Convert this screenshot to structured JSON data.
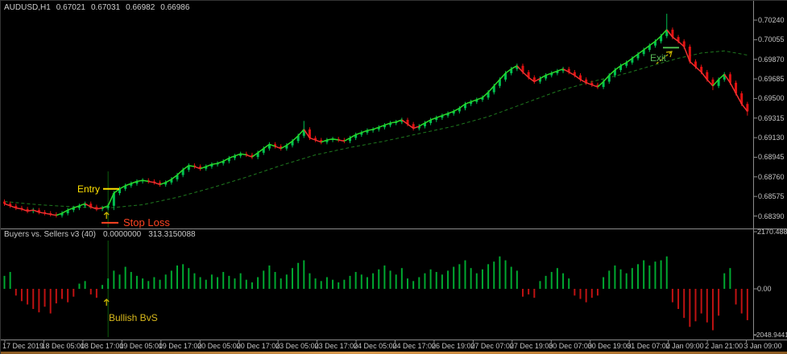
{
  "header": {
    "symbol_timeframe": "AUDUSD,H1",
    "open": "0.67021",
    "high": "0.67031",
    "low": "0.66982",
    "close": "0.66986"
  },
  "indicator_header": {
    "name": "Buyers vs. Sellers v3 (40)",
    "value1": "0.0000000",
    "value2": "313.3150088"
  },
  "annotations": {
    "entry": "Entry",
    "stop_loss": "Stop Loss",
    "exit": "Exit",
    "bullish": "Bullish BvS"
  },
  "colors": {
    "bull": "#00C050",
    "bear": "#E01010",
    "ma_fast_up": "#2ADB2A",
    "ma_fast_down": "#F03030",
    "ma_slow": "#1F7A1F",
    "hist_up": "#00A830",
    "hist_down": "#BE1212",
    "axis_line": "#8A8A8A",
    "axis_text": "#C4C4C4",
    "entry_line": "#FFE100",
    "stop_line": "#FF4422",
    "exit_line": "#4CB84C",
    "arrow": "#C8B400",
    "vline": "#0C5C0C"
  },
  "chart_data": [
    {
      "type": "candlestick",
      "title": "AUDUSD H1",
      "price_base": 0.68,
      "pip": 0.0001,
      "y_tick_labels": [
        "0.70240",
        "0.70055",
        "0.69870",
        "0.69685",
        "0.69500",
        "0.69315",
        "0.69130",
        "0.68945",
        "0.68760",
        "0.68575",
        "0.68390"
      ],
      "x_tick_labels": [
        "17 Dec 2019",
        "18 Dec 05:00",
        "18 Dec 17:00",
        "19 Dec 05:00",
        "19 Dec 17:00",
        "20 Dec 05:00",
        "20 Dec 17:00",
        "23 Dec 05:00",
        "23 Dec 17:00",
        "24 Dec 05:00",
        "24 Dec 17:00",
        "26 Dec 19:00",
        "27 Dec 07:00",
        "27 Dec 19:00",
        "30 Dec 07:00",
        "30 Dec 19:00",
        "31 Dec 07:00",
        "2 Jan 09:00",
        "2 Jan 21:00",
        "3 Jan 09:00"
      ],
      "markers": {
        "entry_price": 0.6865,
        "stop_loss_price": 0.6833,
        "exit_price": 0.6998,
        "signal_bar_index": 18
      },
      "slow_ma_pips": [
        [
          0,
          53
        ],
        [
          6,
          50
        ],
        [
          12,
          48
        ],
        [
          18,
          47
        ],
        [
          24,
          50
        ],
        [
          30,
          57
        ],
        [
          36,
          66
        ],
        [
          42,
          76
        ],
        [
          48,
          87
        ],
        [
          54,
          97
        ],
        [
          60,
          104
        ],
        [
          66,
          110
        ],
        [
          72,
          117
        ],
        [
          78,
          124
        ],
        [
          84,
          133
        ],
        [
          90,
          145
        ],
        [
          96,
          157
        ],
        [
          102,
          166
        ],
        [
          108,
          174
        ],
        [
          113,
          182
        ],
        [
          117,
          188
        ],
        [
          121,
          193
        ],
        [
          125,
          195
        ],
        [
          129,
          191
        ]
      ],
      "candles_ohlc_pips": [
        [
          53,
          55,
          49,
          51
        ],
        [
          51,
          53,
          47,
          49
        ],
        [
          49,
          51,
          45,
          47
        ],
        [
          47,
          49,
          44,
          46
        ],
        [
          46,
          48,
          42,
          44
        ],
        [
          44,
          47,
          42,
          45
        ],
        [
          45,
          47,
          41,
          43
        ],
        [
          43,
          45,
          40,
          42
        ],
        [
          42,
          44,
          39,
          41
        ],
        [
          41,
          43,
          38,
          40
        ],
        [
          40,
          44,
          38,
          42
        ],
        [
          42,
          47,
          40,
          45
        ],
        [
          45,
          49,
          43,
          47
        ],
        [
          47,
          51,
          45,
          49
        ],
        [
          49,
          53,
          47,
          51
        ],
        [
          51,
          53,
          46,
          48
        ],
        [
          48,
          50,
          44,
          46
        ],
        [
          46,
          49,
          44,
          47
        ],
        [
          47,
          51,
          45,
          49
        ],
        [
          49,
          63,
          45,
          61
        ],
        [
          61,
          67,
          59,
          65
        ],
        [
          65,
          70,
          63,
          68
        ],
        [
          68,
          72,
          66,
          70
        ],
        [
          70,
          74,
          68,
          72
        ],
        [
          72,
          75,
          70,
          73
        ],
        [
          73,
          75,
          70,
          72
        ],
        [
          72,
          74,
          69,
          71
        ],
        [
          71,
          73,
          67,
          69
        ],
        [
          69,
          73,
          67,
          71
        ],
        [
          71,
          76,
          69,
          74
        ],
        [
          74,
          80,
          72,
          78
        ],
        [
          78,
          85,
          76,
          83
        ],
        [
          83,
          89,
          81,
          87
        ],
        [
          87,
          89,
          84,
          86
        ],
        [
          86,
          88,
          82,
          84
        ],
        [
          84,
          88,
          82,
          86
        ],
        [
          86,
          90,
          84,
          88
        ],
        [
          88,
          91,
          86,
          89
        ],
        [
          89,
          93,
          87,
          91
        ],
        [
          91,
          96,
          89,
          94
        ],
        [
          94,
          98,
          92,
          96
        ],
        [
          96,
          100,
          94,
          98
        ],
        [
          98,
          100,
          95,
          97
        ],
        [
          97,
          99,
          93,
          95
        ],
        [
          95,
          101,
          93,
          99
        ],
        [
          99,
          105,
          97,
          103
        ],
        [
          103,
          109,
          101,
          107
        ],
        [
          107,
          109,
          103,
          105
        ],
        [
          105,
          107,
          101,
          103
        ],
        [
          103,
          108,
          101,
          106
        ],
        [
          106,
          112,
          104,
          110
        ],
        [
          110,
          117,
          108,
          115
        ],
        [
          115,
          129,
          113,
          121
        ],
        [
          121,
          123,
          111,
          113
        ],
        [
          113,
          115,
          109,
          111
        ],
        [
          111,
          113,
          107,
          109
        ],
        [
          109,
          113,
          107,
          111
        ],
        [
          111,
          114,
          109,
          112
        ],
        [
          112,
          114,
          109,
          111
        ],
        [
          111,
          113,
          108,
          110
        ],
        [
          110,
          115,
          108,
          113
        ],
        [
          113,
          118,
          111,
          116
        ],
        [
          116,
          120,
          114,
          118
        ],
        [
          118,
          122,
          116,
          120
        ],
        [
          120,
          123,
          118,
          121
        ],
        [
          121,
          125,
          119,
          123
        ],
        [
          123,
          127,
          121,
          125
        ],
        [
          125,
          129,
          123,
          127
        ],
        [
          127,
          130,
          125,
          128
        ],
        [
          128,
          132,
          126,
          130
        ],
        [
          130,
          132,
          124,
          126
        ],
        [
          126,
          128,
          120,
          122
        ],
        [
          122,
          126,
          120,
          124
        ],
        [
          124,
          129,
          122,
          127
        ],
        [
          127,
          132,
          125,
          130
        ],
        [
          130,
          134,
          128,
          132
        ],
        [
          132,
          136,
          130,
          134
        ],
        [
          134,
          138,
          132,
          136
        ],
        [
          136,
          140,
          134,
          138
        ],
        [
          138,
          143,
          136,
          141
        ],
        [
          141,
          147,
          139,
          145
        ],
        [
          145,
          149,
          143,
          147
        ],
        [
          147,
          151,
          145,
          149
        ],
        [
          149,
          153,
          147,
          151
        ],
        [
          151,
          158,
          149,
          156
        ],
        [
          156,
          164,
          154,
          162
        ],
        [
          162,
          170,
          160,
          168
        ],
        [
          168,
          176,
          166,
          174
        ],
        [
          174,
          180,
          172,
          178
        ],
        [
          178,
          183,
          176,
          181
        ],
        [
          181,
          183,
          173,
          175
        ],
        [
          175,
          177,
          168,
          170
        ],
        [
          170,
          172,
          164,
          166
        ],
        [
          166,
          171,
          164,
          169
        ],
        [
          169,
          174,
          167,
          172
        ],
        [
          172,
          176,
          170,
          174
        ],
        [
          174,
          178,
          172,
          176
        ],
        [
          176,
          180,
          174,
          178
        ],
        [
          178,
          180,
          173,
          175
        ],
        [
          175,
          177,
          170,
          172
        ],
        [
          172,
          174,
          166,
          168
        ],
        [
          168,
          170,
          163,
          165
        ],
        [
          165,
          167,
          161,
          163
        ],
        [
          163,
          165,
          159,
          161
        ],
        [
          161,
          168,
          159,
          166
        ],
        [
          166,
          174,
          164,
          172
        ],
        [
          172,
          179,
          170,
          177
        ],
        [
          177,
          183,
          175,
          181
        ],
        [
          181,
          186,
          179,
          184
        ],
        [
          184,
          190,
          182,
          188
        ],
        [
          188,
          194,
          186,
          192
        ],
        [
          192,
          198,
          190,
          196
        ],
        [
          196,
          202,
          194,
          200
        ],
        [
          200,
          206,
          198,
          204
        ],
        [
          204,
          211,
          202,
          209
        ],
        [
          209,
          230,
          207,
          215
        ],
        [
          215,
          217,
          206,
          208
        ],
        [
          208,
          210,
          202,
          204
        ],
        [
          204,
          206,
          197,
          199
        ],
        [
          199,
          201,
          183,
          185
        ],
        [
          185,
          187,
          178,
          180
        ],
        [
          180,
          182,
          173,
          175
        ],
        [
          175,
          177,
          166,
          168
        ],
        [
          168,
          170,
          158,
          162
        ],
        [
          162,
          170,
          160,
          168
        ],
        [
          168,
          175,
          166,
          173
        ],
        [
          173,
          175,
          163,
          165
        ],
        [
          165,
          167,
          153,
          155
        ],
        [
          155,
          157,
          143,
          145
        ],
        [
          145,
          147,
          134,
          138
        ]
      ]
    },
    {
      "type": "bar",
      "name": "Buyers vs. Sellers v3 (40)",
      "ylim": [
        -2048.9441,
        2170.4885
      ],
      "y_tick_labels": {
        "max": "2170.4885",
        "zero": "0.00",
        "min": "-2048.9441"
      },
      "values": [
        500,
        650,
        -300,
        -550,
        -700,
        -900,
        -1050,
        -800,
        -1100,
        -650,
        -450,
        -600,
        -350,
        200,
        300,
        -250,
        -400,
        150,
        400,
        700,
        550,
        850,
        650,
        500,
        400,
        300,
        450,
        350,
        550,
        700,
        900,
        950,
        800,
        600,
        450,
        350,
        550,
        450,
        650,
        500,
        400,
        600,
        350,
        250,
        450,
        700,
        900,
        650,
        400,
        550,
        800,
        1000,
        1100,
        600,
        400,
        300,
        450,
        350,
        250,
        350,
        500,
        650,
        550,
        450,
        600,
        750,
        900,
        700,
        550,
        800,
        400,
        300,
        450,
        600,
        750,
        650,
        550,
        700,
        850,
        950,
        1100,
        800,
        600,
        750,
        950,
        1050,
        1250,
        1100,
        850,
        700,
        -350,
        -250,
        -400,
        300,
        500,
        650,
        800,
        600,
        400,
        -300,
        -450,
        -600,
        -400,
        -300,
        450,
        700,
        900,
        750,
        600,
        800,
        950,
        1100,
        900,
        1050,
        1100,
        1250,
        -600,
        -900,
        -1300,
        -1700,
        -1450,
        -1100,
        -1500,
        -1850,
        -1200,
        600,
        800,
        -700,
        -1100,
        -1400
      ]
    }
  ]
}
